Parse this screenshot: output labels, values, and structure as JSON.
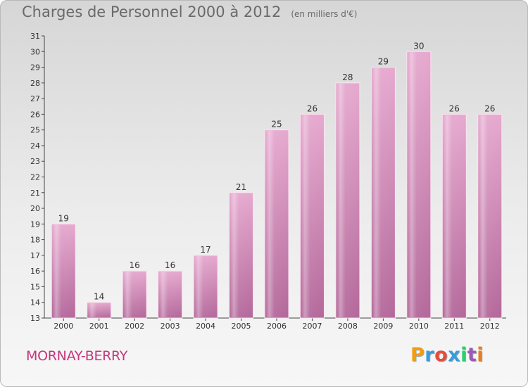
{
  "header": {
    "title": "Charges de Personnel 2000 à 2012",
    "subtitle": "(en milliers d'€)"
  },
  "footer": {
    "city": "MORNAY-BERRY",
    "logo": "Proxiti",
    "logo_colors": [
      "#f39c12",
      "#3a9bd9",
      "#e74c3c",
      "#3a9bd9",
      "#2ecc71",
      "#9b59b6",
      "#e67e22"
    ]
  },
  "chart_data": {
    "type": "bar",
    "title": "Charges de Personnel 2000 à 2012",
    "subtitle": "(en milliers d'€)",
    "categories": [
      "2000",
      "2001",
      "2002",
      "2003",
      "2004",
      "2005",
      "2006",
      "2007",
      "2008",
      "2009",
      "2010",
      "2011",
      "2012"
    ],
    "values": [
      19,
      14,
      16,
      16,
      17,
      21,
      25,
      26,
      28,
      29,
      30,
      26,
      26
    ],
    "ylim": [
      13,
      31
    ],
    "yticks": [
      13,
      14,
      15,
      16,
      17,
      18,
      19,
      20,
      21,
      22,
      23,
      24,
      25,
      26,
      27,
      28,
      29,
      30,
      31
    ],
    "grid": false,
    "bar_color": "#d68fb9"
  }
}
